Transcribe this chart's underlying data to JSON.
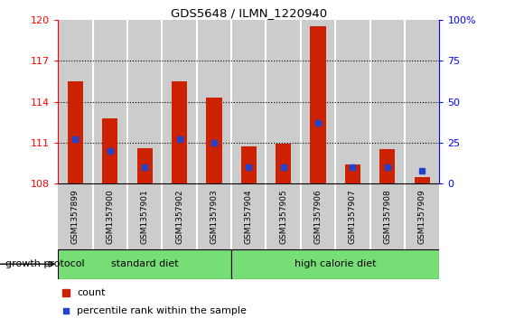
{
  "title": "GDS5648 / ILMN_1220940",
  "samples": [
    "GSM1357899",
    "GSM1357900",
    "GSM1357901",
    "GSM1357902",
    "GSM1357903",
    "GSM1357904",
    "GSM1357905",
    "GSM1357906",
    "GSM1357907",
    "GSM1357908",
    "GSM1357909"
  ],
  "count_values": [
    115.5,
    112.8,
    110.6,
    115.5,
    114.3,
    110.7,
    110.9,
    119.5,
    109.4,
    110.5,
    108.5
  ],
  "percentile_values": [
    27,
    20,
    10,
    27,
    25,
    10,
    10,
    37,
    10,
    10,
    8
  ],
  "ymin": 108,
  "ymax": 120,
  "yticks": [
    108,
    111,
    114,
    117,
    120
  ],
  "right_yticks": [
    0,
    25,
    50,
    75,
    100
  ],
  "right_yticklabels": [
    "0",
    "25",
    "50",
    "75",
    "100%"
  ],
  "bar_color": "#CC2200",
  "percentile_color": "#2244CC",
  "bg_color": "#CCCCCC",
  "group1_label": "standard diet",
  "group2_label": "high calorie diet",
  "group1_indices": [
    0,
    1,
    2,
    3,
    4
  ],
  "group2_indices": [
    5,
    6,
    7,
    8,
    9,
    10
  ],
  "group_box_color": "#77DD77",
  "xlabel_left": "growth protocol",
  "legend_count": "count",
  "legend_percentile": "percentile rank within the sample",
  "grid_yticks": [
    111,
    114,
    117
  ]
}
